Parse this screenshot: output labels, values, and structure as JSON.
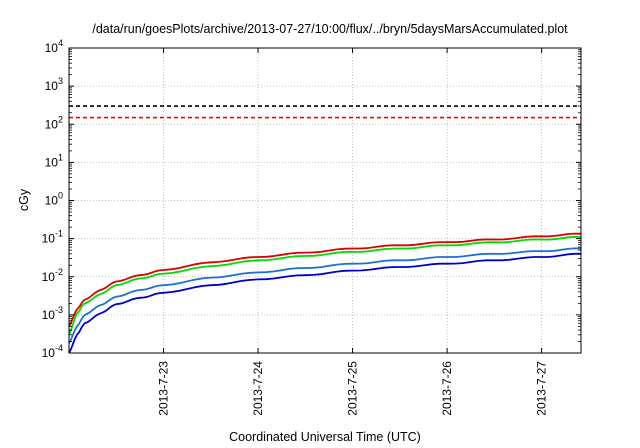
{
  "chart_data": {
    "type": "line",
    "title": "/data/run/goesPlots/archive/2013-07-27/10:00/flux/../bryn/5daysMarsAccumulated.plot",
    "xlabel": "Coordinated Universal Time (UTC)",
    "ylabel": "cGy",
    "y_scale": "log",
    "ylim": [
      0.0001,
      10000
    ],
    "y_ticks": [
      {
        "base": "10",
        "exp": "-4",
        "value": 0.0001
      },
      {
        "base": "10",
        "exp": "-3",
        "value": 0.001
      },
      {
        "base": "10",
        "exp": "-2",
        "value": 0.01
      },
      {
        "base": "10",
        "exp": "-1",
        "value": 0.1
      },
      {
        "base": "10",
        "exp": "0",
        "value": 1
      },
      {
        "base": "10",
        "exp": "1",
        "value": 10
      },
      {
        "base": "10",
        "exp": "2",
        "value": 100
      },
      {
        "base": "10",
        "exp": "3",
        "value": 1000
      },
      {
        "base": "10",
        "exp": "4",
        "value": 10000
      }
    ],
    "xlim": [
      "2013-07-22 00:00",
      "2013-07-27 10:00"
    ],
    "x_ticks": [
      {
        "label": "2013-7-23",
        "date": "2013-07-23 00:00"
      },
      {
        "label": "2013-7-24",
        "date": "2013-07-24 00:00"
      },
      {
        "label": "2013-7-25",
        "date": "2013-07-25 00:00"
      },
      {
        "label": "2013-7-26",
        "date": "2013-07-26 00:00"
      },
      {
        "label": "2013-7-27",
        "date": "2013-07-27 00:00"
      }
    ],
    "grid": true,
    "reference_lines": [
      {
        "value": 300,
        "color": "#000000",
        "style": "dashed"
      },
      {
        "value": 150,
        "color": "#ff0000",
        "style": "dashed"
      }
    ],
    "series": [
      {
        "color": "#dd0000",
        "x": [
          "2013-07-22 00:00",
          "2013-07-22 02:00",
          "2013-07-22 04:00",
          "2013-07-22 08:00",
          "2013-07-22 12:00",
          "2013-07-22 18:00",
          "2013-07-23 00:00",
          "2013-07-23 12:00",
          "2013-07-24 00:00",
          "2013-07-24 12:00",
          "2013-07-25 00:00",
          "2013-07-25 12:00",
          "2013-07-26 00:00",
          "2013-07-26 12:00",
          "2013-07-27 00:00",
          "2013-07-27 10:00"
        ],
        "values": [
          0.0005,
          0.0014,
          0.0025,
          0.0045,
          0.0075,
          0.011,
          0.015,
          0.024,
          0.033,
          0.043,
          0.055,
          0.067,
          0.081,
          0.095,
          0.115,
          0.135
        ]
      },
      {
        "color": "#00dd00",
        "x": [
          "2013-07-22 00:00",
          "2013-07-22 02:00",
          "2013-07-22 04:00",
          "2013-07-22 08:00",
          "2013-07-22 12:00",
          "2013-07-22 18:00",
          "2013-07-23 00:00",
          "2013-07-23 12:00",
          "2013-07-24 00:00",
          "2013-07-24 12:00",
          "2013-07-25 00:00",
          "2013-07-25 12:00",
          "2013-07-26 00:00",
          "2013-07-26 12:00",
          "2013-07-27 00:00",
          "2013-07-27 10:00"
        ],
        "values": [
          0.0003,
          0.0011,
          0.002,
          0.0035,
          0.006,
          0.009,
          0.012,
          0.019,
          0.027,
          0.035,
          0.045,
          0.055,
          0.067,
          0.08,
          0.095,
          0.11
        ]
      },
      {
        "color": "#1e6fd8",
        "x": [
          "2013-07-22 00:00",
          "2013-07-22 02:00",
          "2013-07-22 04:00",
          "2013-07-22 08:00",
          "2013-07-22 12:00",
          "2013-07-22 18:00",
          "2013-07-23 00:00",
          "2013-07-23 12:00",
          "2013-07-24 00:00",
          "2013-07-24 12:00",
          "2013-07-25 00:00",
          "2013-07-25 12:00",
          "2013-07-26 00:00",
          "2013-07-26 12:00",
          "2013-07-27 00:00",
          "2013-07-27 10:00"
        ],
        "values": [
          0.00018,
          0.0005,
          0.001,
          0.0018,
          0.003,
          0.0045,
          0.006,
          0.0095,
          0.013,
          0.017,
          0.022,
          0.027,
          0.033,
          0.04,
          0.047,
          0.055
        ]
      },
      {
        "color": "#0000cc",
        "x": [
          "2013-07-22 00:00",
          "2013-07-22 02:00",
          "2013-07-22 04:00",
          "2013-07-22 08:00",
          "2013-07-22 12:00",
          "2013-07-22 18:00",
          "2013-07-23 00:00",
          "2013-07-23 12:00",
          "2013-07-24 00:00",
          "2013-07-24 12:00",
          "2013-07-25 00:00",
          "2013-07-25 12:00",
          "2013-07-26 00:00",
          "2013-07-26 12:00",
          "2013-07-27 00:00",
          "2013-07-27 10:00"
        ],
        "values": [
          0.0001,
          0.0003,
          0.0006,
          0.0011,
          0.0019,
          0.0028,
          0.0038,
          0.006,
          0.0085,
          0.011,
          0.0145,
          0.018,
          0.022,
          0.027,
          0.033,
          0.04
        ]
      }
    ]
  }
}
